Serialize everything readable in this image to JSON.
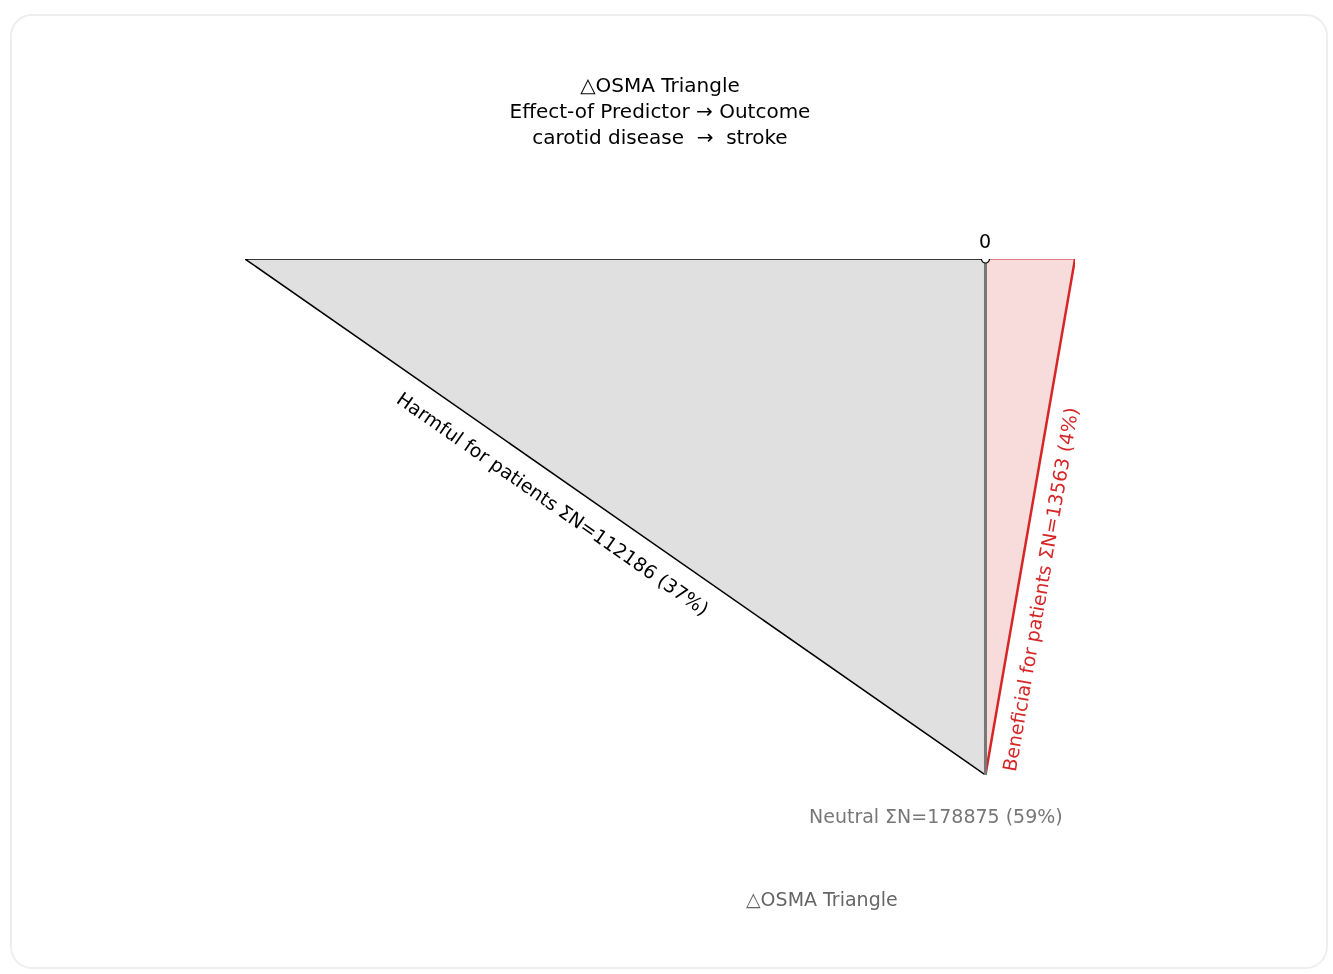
{
  "chart_data": {
    "type": "other",
    "title": "△OSMA Triangle",
    "subtitle": "Effect-of Predictor → Outcome\ncarotid disease  →  stroke",
    "categories": [
      "Harmful for patients",
      "Neutral",
      "Beneficial for patients"
    ],
    "values": [
      112186,
      178875,
      13563
    ],
    "value_labels": [
      "ΣN=112186 (37%)",
      "ΣN=178875 (59%)",
      "ΣN=13563 (4%)"
    ],
    "colors": [
      "#e0e0e0",
      "#777777",
      "#f8dcdc"
    ],
    "annotations": [
      "0",
      "△OSMA Triangle"
    ]
  }
}
